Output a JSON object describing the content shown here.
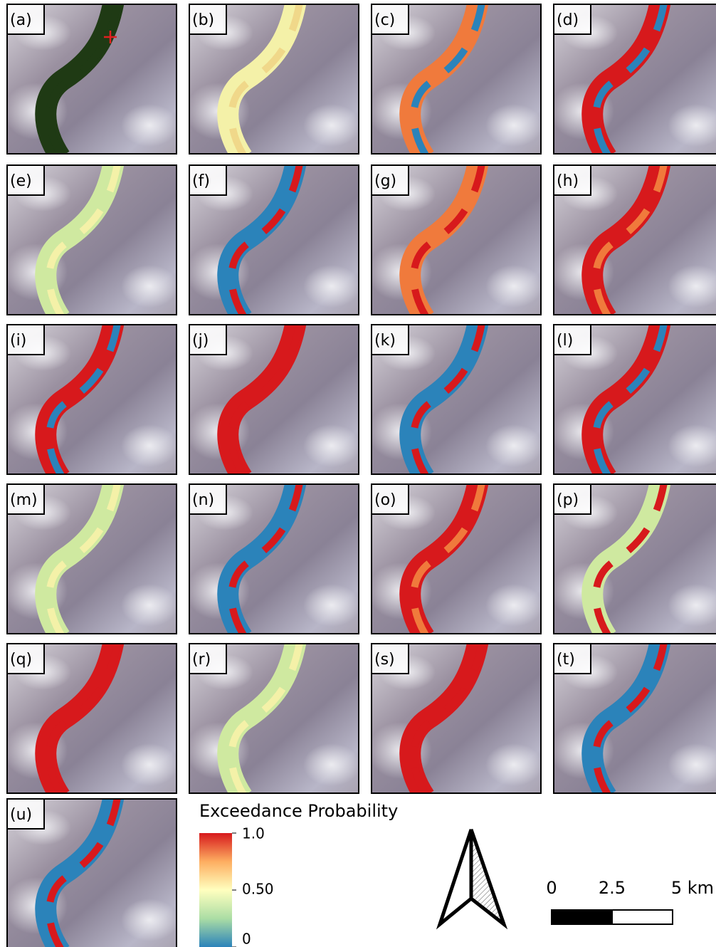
{
  "panels": [
    {
      "label": "(a)"
    },
    {
      "label": "(b)"
    },
    {
      "label": "(c)"
    },
    {
      "label": "(d)"
    },
    {
      "label": "(e)"
    },
    {
      "label": "(f)"
    },
    {
      "label": "(g)"
    },
    {
      "label": "(h)"
    },
    {
      "label": "(i)"
    },
    {
      "label": "(j)"
    },
    {
      "label": "(k)"
    },
    {
      "label": "(l)"
    },
    {
      "label": "(m)"
    },
    {
      "label": "(n)"
    },
    {
      "label": "(o)"
    },
    {
      "label": "(p)"
    },
    {
      "label": "(q)"
    },
    {
      "label": "(r)"
    },
    {
      "label": "(s)"
    },
    {
      "label": "(t)"
    },
    {
      "label": "(u)"
    }
  ],
  "legend": {
    "title": "Exceedance Probability",
    "ticks": [
      {
        "value": 1,
        "label": "1.0"
      },
      {
        "value": 0.5,
        "label": "0.50"
      },
      0
    ]
  },
  "scale_bar": {
    "labels": [
      "0",
      "2.5",
      "5 km"
    ]
  }
}
